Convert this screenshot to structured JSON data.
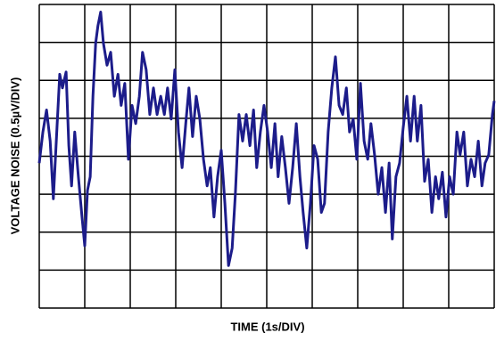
{
  "chart_data": {
    "type": "line",
    "xlabel": "TIME (1s/DIV)",
    "ylabel": "VOLTAGE NOISE (0.5µV/DIV)",
    "color": "#1c1c8a",
    "xlim": [
      0,
      10
    ],
    "xticks": [
      0,
      1,
      2,
      3,
      4,
      5,
      6,
      7,
      8,
      9,
      10
    ],
    "ylim": [
      -2,
      2
    ],
    "yticks": [
      -2,
      -1.5,
      -1,
      -0.5,
      0,
      0.5,
      1,
      1.5,
      2
    ],
    "grid": true,
    "x": [
      0,
      0.08,
      0.16,
      0.24,
      0.31,
      0.39,
      0.45,
      0.51,
      0.59,
      0.65,
      0.71,
      0.78,
      0.86,
      0.94,
      1.0,
      1.06,
      1.12,
      1.18,
      1.24,
      1.29,
      1.35,
      1.41,
      1.49,
      1.57,
      1.65,
      1.73,
      1.8,
      1.88,
      1.96,
      2.04,
      2.12,
      2.2,
      2.27,
      2.35,
      2.43,
      2.51,
      2.59,
      2.67,
      2.75,
      2.82,
      2.9,
      2.98,
      3.06,
      3.14,
      3.22,
      3.29,
      3.37,
      3.45,
      3.53,
      3.61,
      3.69,
      3.76,
      3.84,
      3.92,
      4.0,
      4.08,
      4.16,
      4.24,
      4.31,
      4.39,
      4.47,
      4.55,
      4.63,
      4.71,
      4.78,
      4.86,
      4.94,
      5.02,
      5.1,
      5.18,
      5.25,
      5.33,
      5.41,
      5.49,
      5.57,
      5.65,
      5.73,
      5.8,
      5.88,
      5.96,
      6.04,
      6.12,
      6.2,
      6.27,
      6.35,
      6.43,
      6.51,
      6.59,
      6.67,
      6.75,
      6.82,
      6.9,
      6.98,
      7.06,
      7.14,
      7.22,
      7.29,
      7.37,
      7.45,
      7.53,
      7.61,
      7.69,
      7.76,
      7.84,
      7.92,
      8.0,
      8.08,
      8.16,
      8.24,
      8.31,
      8.39,
      8.47,
      8.55,
      8.63,
      8.71,
      8.78,
      8.86,
      8.94,
      9.02,
      9.1,
      9.18,
      9.25,
      9.33,
      9.41,
      9.49,
      9.57,
      9.65,
      9.73,
      9.8,
      9.88,
      9.96,
      10.0
    ],
    "values": [
      -0.09,
      0.32,
      0.61,
      0.2,
      -0.56,
      0.38,
      1.08,
      0.9,
      1.11,
      0.14,
      -0.39,
      0.32,
      -0.27,
      -0.8,
      -1.18,
      -0.45,
      -0.27,
      0.79,
      1.49,
      1.72,
      1.9,
      1.49,
      1.2,
      1.37,
      0.79,
      1.08,
      0.67,
      0.96,
      -0.04,
      0.67,
      0.43,
      0.79,
      1.37,
      1.14,
      0.55,
      0.9,
      0.55,
      0.79,
      0.55,
      0.9,
      0.49,
      1.14,
      0.32,
      -0.15,
      0.43,
      0.9,
      0.26,
      0.79,
      0.49,
      -0.04,
      -0.39,
      -0.15,
      -0.8,
      -0.27,
      0.08,
      -0.62,
      -1.44,
      -1.21,
      -0.5,
      0.55,
      0.2,
      0.55,
      0.14,
      0.61,
      -0.15,
      0.32,
      0.67,
      0.32,
      -0.15,
      0.43,
      -0.27,
      0.26,
      -0.15,
      -0.62,
      -0.15,
      0.43,
      -0.27,
      -0.74,
      -1.21,
      -0.62,
      0.14,
      -0.04,
      -0.74,
      -0.62,
      0.32,
      0.9,
      1.31,
      0.67,
      0.55,
      0.9,
      0.32,
      0.49,
      -0.04,
      0.96,
      0.2,
      -0.04,
      0.43,
      0.02,
      -0.5,
      -0.15,
      -0.74,
      -0.09,
      -1.09,
      -0.27,
      -0.09,
      0.38,
      0.79,
      0.2,
      0.79,
      0.2,
      0.67,
      -0.33,
      -0.04,
      -0.74,
      -0.27,
      -0.56,
      -0.21,
      -0.8,
      -0.27,
      -0.5,
      0.32,
      0.02,
      0.32,
      -0.39,
      -0.04,
      -0.27,
      0.2,
      -0.39,
      -0.09,
      0.02,
      0.55,
      0.73
    ]
  }
}
